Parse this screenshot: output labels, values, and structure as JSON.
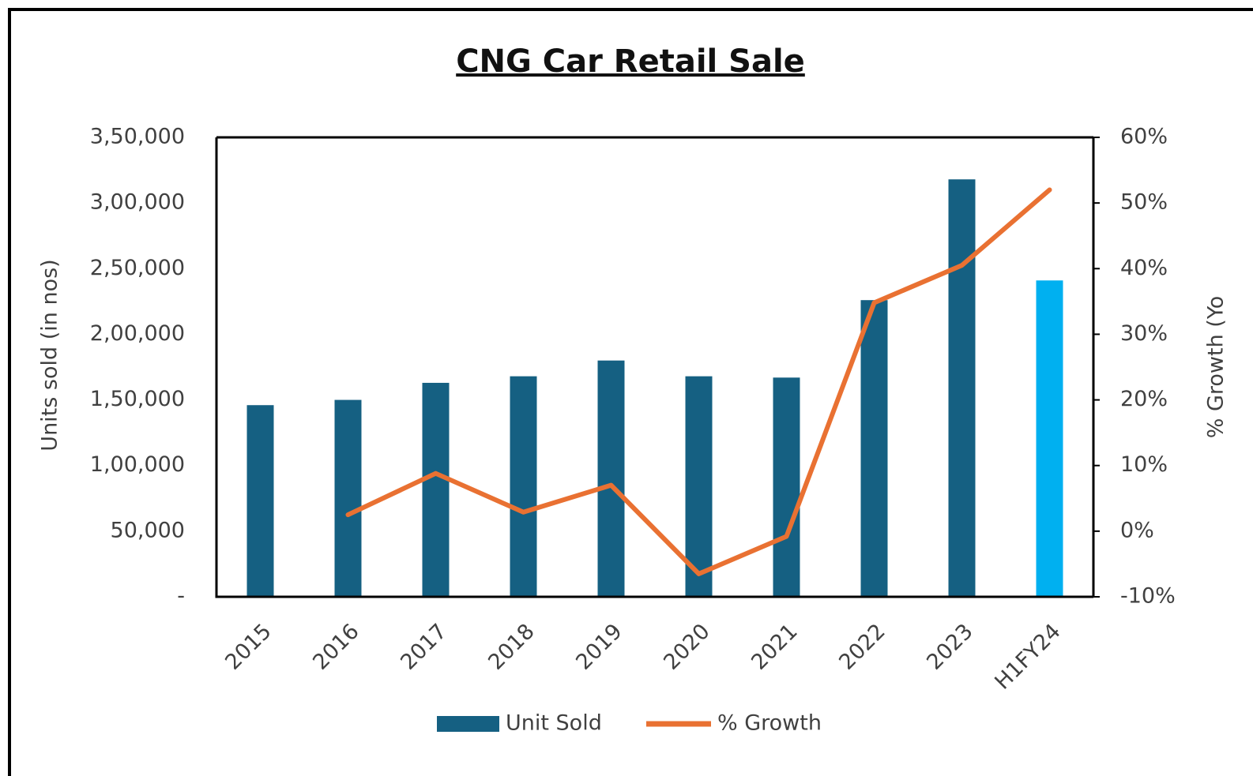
{
  "chart_data": {
    "type": "bar_line",
    "title": "CNG Car Retail Sale",
    "y_label": "Units sold (in nos)",
    "y2_label": "% Growth (Yo",
    "categories": [
      "2015",
      "2016",
      "2017",
      "2018",
      "2019",
      "2020",
      "2021",
      "2022",
      "2023",
      "H1FY24"
    ],
    "series": [
      {
        "name": "Unit Sold",
        "type": "bar",
        "color": "#156082",
        "colors": [
          "#156082",
          "#156082",
          "#156082",
          "#156082",
          "#156082",
          "#156082",
          "#156082",
          "#156082",
          "#156082",
          "#00b0f0"
        ],
        "values": [
          146000,
          150000,
          163000,
          168000,
          180000,
          168000,
          167000,
          226000,
          318000,
          241000
        ]
      },
      {
        "name": "% Growth",
        "type": "line",
        "axis": "y2",
        "color": "#e97132",
        "values": [
          null,
          2.5,
          8.8,
          2.9,
          7,
          -6.5,
          -0.8,
          34.8,
          40.5,
          52
        ]
      }
    ],
    "ylim": [
      0,
      350000
    ],
    "yticks": [
      {
        "value": 0,
        "label": "-"
      },
      {
        "value": 50000,
        "label": "50,000"
      },
      {
        "value": 100000,
        "label": "1,00,000"
      },
      {
        "value": 150000,
        "label": "1,50,000"
      },
      {
        "value": 200000,
        "label": "2,00,000"
      },
      {
        "value": 250000,
        "label": "2,50,000"
      },
      {
        "value": 300000,
        "label": "3,00,000"
      },
      {
        "value": 350000,
        "label": "3,50,000"
      }
    ],
    "y2lim": [
      -10,
      60
    ],
    "y2ticks": [
      {
        "value": -10,
        "label": "-10%"
      },
      {
        "value": 0,
        "label": "0%"
      },
      {
        "value": 10,
        "label": "10%"
      },
      {
        "value": 20,
        "label": "20%"
      },
      {
        "value": 30,
        "label": "30%"
      },
      {
        "value": 40,
        "label": "40%"
      },
      {
        "value": 50,
        "label": "50%"
      },
      {
        "value": 60,
        "label": "60%"
      }
    ],
    "legend": "bottom"
  }
}
